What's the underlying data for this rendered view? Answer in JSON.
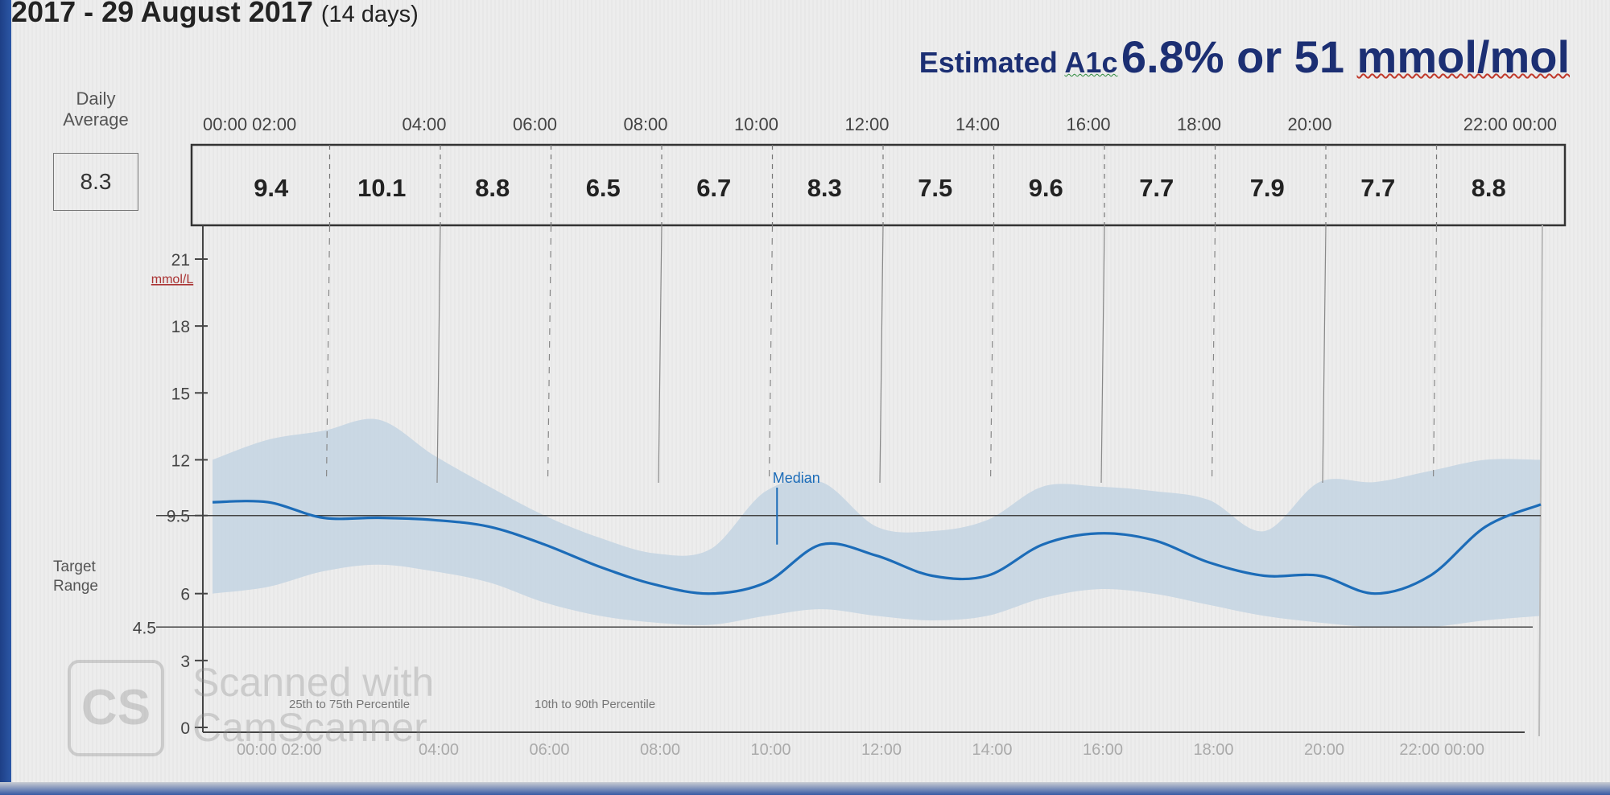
{
  "header": {
    "date_range": "2017 - 29 August 2017",
    "days": "(14 days)"
  },
  "a1c": {
    "label_1": "Estimated ",
    "label_2": "A1c",
    "value_1": "6.8% or 51 ",
    "value_2": "mmol/mol"
  },
  "daily_average": {
    "label": "Daily Average",
    "value": "8.3"
  },
  "legend": {
    "median_label": "Median",
    "band_inner": "25th to 75th Percentile",
    "band_outer": "10th to 90th Percentile"
  },
  "watermark": {
    "logo": "CS",
    "text": "Scanned with CamScanner"
  },
  "colors": {
    "median": "#1c6cb8",
    "band_inner": "#c3d3e2",
    "band_outer": "#dbe3eb",
    "grid": "#666666"
  },
  "chart_data": {
    "type": "area",
    "xlabel": "",
    "ylabel": "mmol/L",
    "x_range_hours": [
      0,
      24
    ],
    "ylim": [
      0,
      21
    ],
    "y_ticks": [
      0,
      3,
      6,
      9.5,
      12,
      15,
      18,
      21
    ],
    "target_range": [
      4.5,
      9.5
    ],
    "target_range_label": "Target Range",
    "x_tick_labels": [
      "00:00 02:00",
      "04:00",
      "06:00",
      "08:00",
      "10:00",
      "12:00",
      "14:00",
      "16:00",
      "18:00",
      "20:00",
      "22:00 00:00"
    ],
    "bottom_tick_labels": [
      "00:00 02:00",
      "04:00",
      "06:00",
      "08:00",
      "10:00",
      "12:00",
      "14:00",
      "16:00",
      "18:00",
      "20:00",
      "22:00 00:00"
    ],
    "two_hour_averages": [
      {
        "period": "00:00-02:00",
        "value": "9.4"
      },
      {
        "period": "02:00-04:00",
        "value": "10.1"
      },
      {
        "period": "04:00-06:00",
        "value": "8.8"
      },
      {
        "period": "06:00-08:00",
        "value": "6.5"
      },
      {
        "period": "08:00-10:00",
        "value": "6.7"
      },
      {
        "period": "10:00-12:00",
        "value": "8.3"
      },
      {
        "period": "12:00-14:00",
        "value": "7.5"
      },
      {
        "period": "14:00-16:00",
        "value": "9.6"
      },
      {
        "period": "16:00-18:00",
        "value": "7.7"
      },
      {
        "period": "18:00-20:00",
        "value": "7.9"
      },
      {
        "period": "20:00-22:00",
        "value": "7.7"
      },
      {
        "period": "22:00-00:00",
        "value": "8.8"
      }
    ],
    "series": [
      {
        "name": "Median",
        "x": [
          0,
          1,
          2,
          3,
          4,
          5,
          6,
          7,
          8,
          9,
          10,
          11,
          12,
          13,
          14,
          15,
          16,
          17,
          18,
          19,
          20,
          21,
          22,
          23,
          24
        ],
        "y": [
          10.1,
          10.1,
          9.4,
          9.4,
          9.3,
          9.0,
          8.2,
          7.2,
          6.4,
          6.0,
          6.5,
          8.2,
          7.7,
          6.8,
          6.8,
          8.2,
          8.7,
          8.4,
          7.4,
          6.8,
          6.8,
          6.0,
          6.8,
          9.0,
          10.0
        ]
      },
      {
        "name": "25th to 75th Percentile",
        "x": [
          0,
          1,
          2,
          3,
          4,
          5,
          6,
          7,
          8,
          9,
          10,
          11,
          12,
          13,
          14,
          15,
          16,
          17,
          18,
          19,
          20,
          21,
          22,
          23,
          24
        ],
        "y_low": [
          6.0,
          6.3,
          7.0,
          7.3,
          7.0,
          6.5,
          5.6,
          5.0,
          4.7,
          4.6,
          5.0,
          5.3,
          5.0,
          4.8,
          5.0,
          5.8,
          6.2,
          6.0,
          5.5,
          5.0,
          4.7,
          4.5,
          4.5,
          4.8,
          5.0
        ],
        "y_high": [
          12.0,
          12.9,
          13.3,
          13.8,
          12.2,
          10.8,
          9.5,
          8.5,
          7.8,
          8.0,
          10.6,
          11.0,
          9.0,
          8.8,
          9.3,
          10.8,
          10.8,
          10.6,
          10.2,
          8.8,
          11.0,
          11.0,
          11.5,
          12.0,
          12.0
        ]
      }
    ]
  }
}
